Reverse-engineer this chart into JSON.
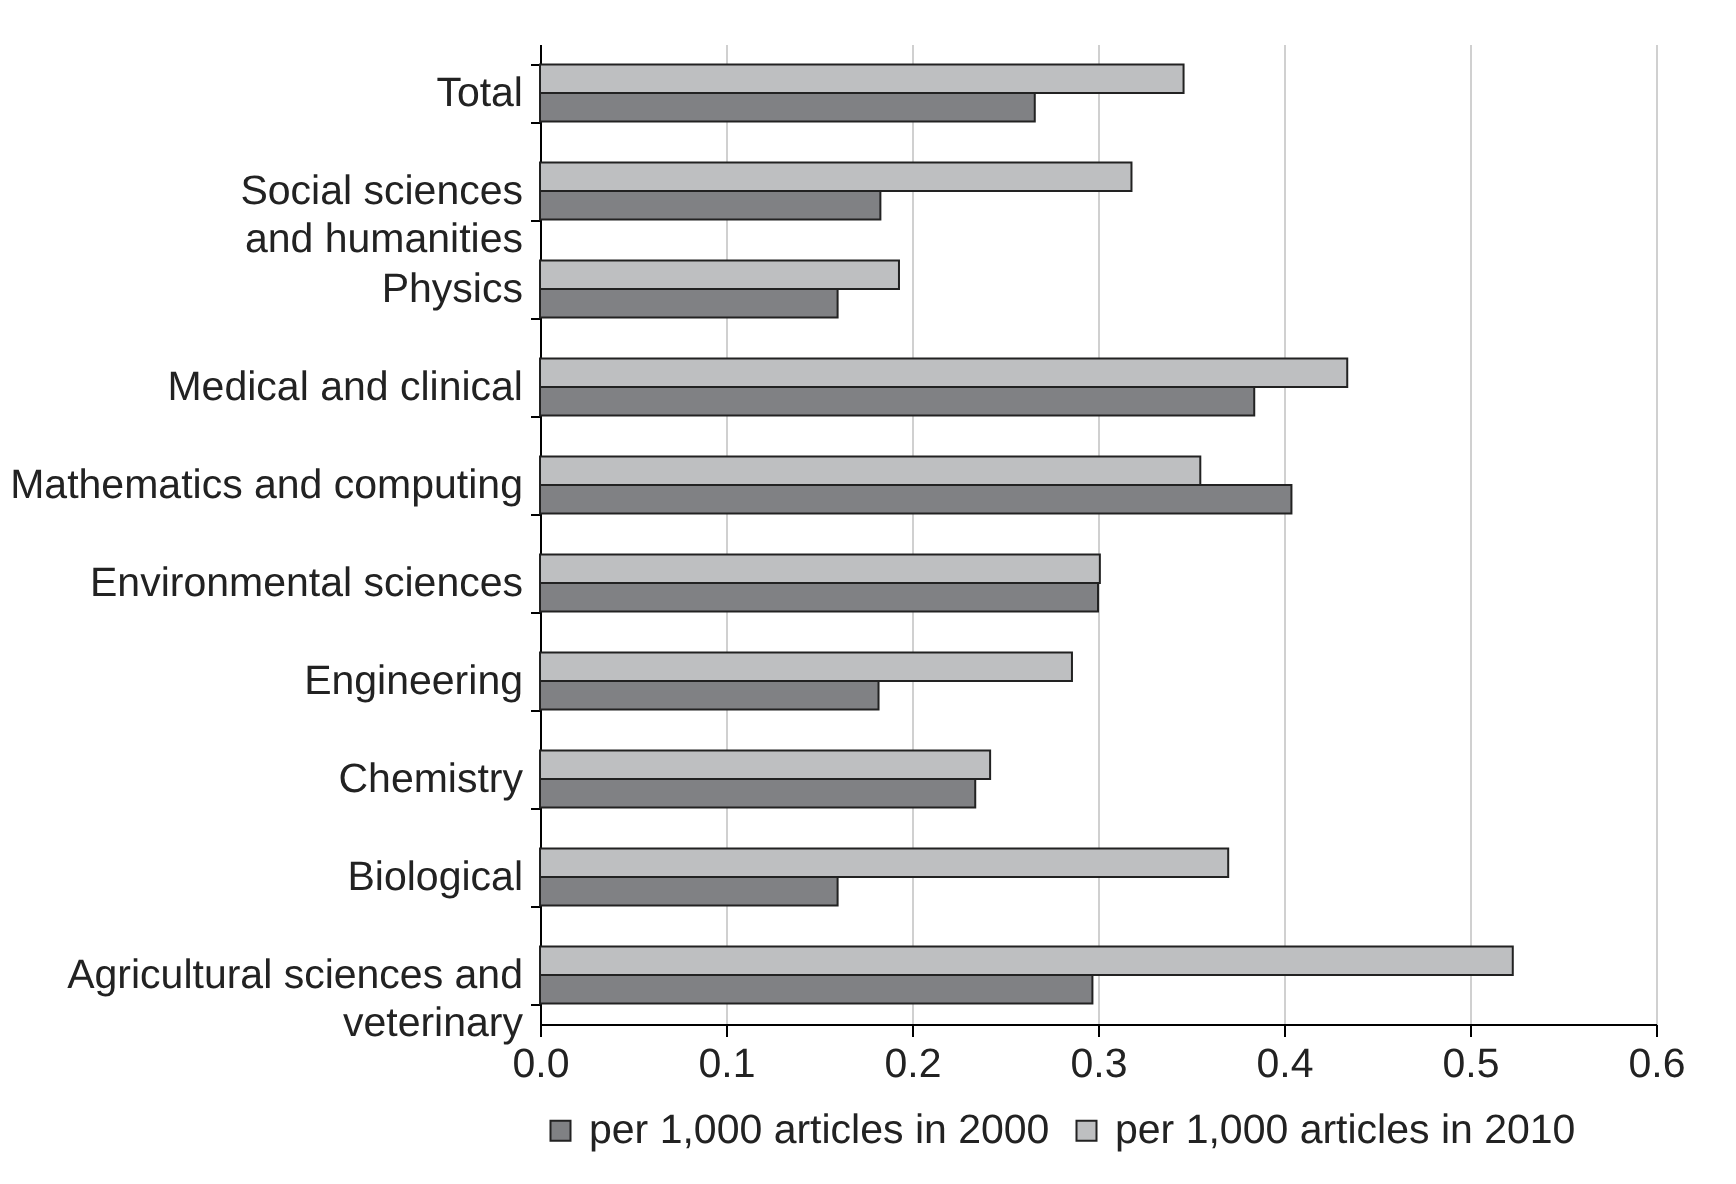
{
  "chart_data": {
    "type": "bar",
    "orientation": "horizontal",
    "categories": [
      "Total",
      "Social sciences\nand humanities",
      "Physics",
      "Medical and clinical",
      "Mathematics and computing",
      "Environmental sciences",
      "Engineering",
      "Chemistry",
      "Biological",
      "Agricultural sciences and\nveterinary"
    ],
    "series": [
      {
        "name": "per 1,000 articles in 2000",
        "color": "#808184",
        "values": [
          0.266,
          0.183,
          0.16,
          0.384,
          0.404,
          0.3,
          0.182,
          0.234,
          0.16,
          0.297
        ]
      },
      {
        "name": "per 1,000 articles in 2010",
        "color": "#bebfc1",
        "values": [
          0.346,
          0.318,
          0.193,
          0.434,
          0.355,
          0.301,
          0.286,
          0.242,
          0.37,
          0.523
        ]
      }
    ],
    "xlim": [
      0,
      0.6
    ],
    "xticks": [
      {
        "value": 0,
        "label": "0.0"
      },
      {
        "value": 0.1,
        "label": "0.1"
      },
      {
        "value": 0.2,
        "label": "0.2"
      },
      {
        "value": 0.3,
        "label": "0.3"
      },
      {
        "value": 0.4,
        "label": "0.4"
      },
      {
        "value": 0.5,
        "label": "0.5"
      },
      {
        "value": 0.6,
        "label": "0.6"
      }
    ],
    "grid": "x",
    "legend": "bottom"
  }
}
